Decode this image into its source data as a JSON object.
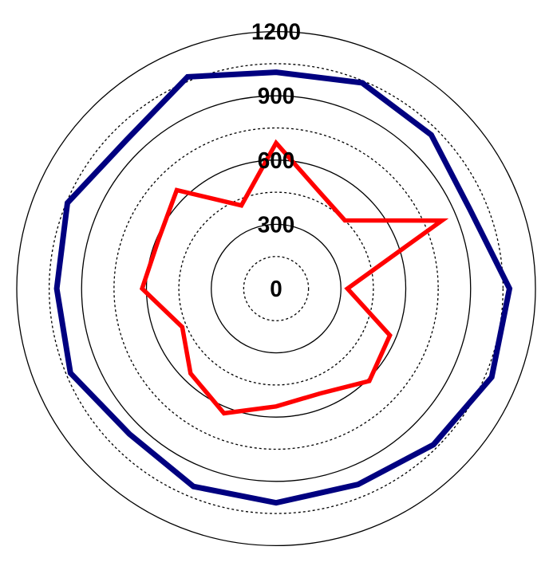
{
  "chart_data": {
    "type": "radar",
    "title": "",
    "radial_range": [
      0,
      1200
    ],
    "radial_ticks": [
      0,
      300,
      600,
      900,
      1200
    ],
    "grid_step": 150,
    "grid": true,
    "start_angle": "top",
    "direction": "clockwise",
    "series": [
      {
        "color": "#000080",
        "values": [
          1010,
          1040,
          1015,
          970,
          1080,
          1080,
          1030,
          990,
          1000,
          1000,
          960,
          1030,
          1015,
          1045,
          980,
          1070
        ]
      },
      {
        "color": "#ff0000",
        "values": [
          680,
          500,
          450,
          830,
          330,
          570,
          610,
          530,
          550,
          630,
          560,
          470,
          620,
          590,
          650,
          420
        ]
      }
    ]
  }
}
